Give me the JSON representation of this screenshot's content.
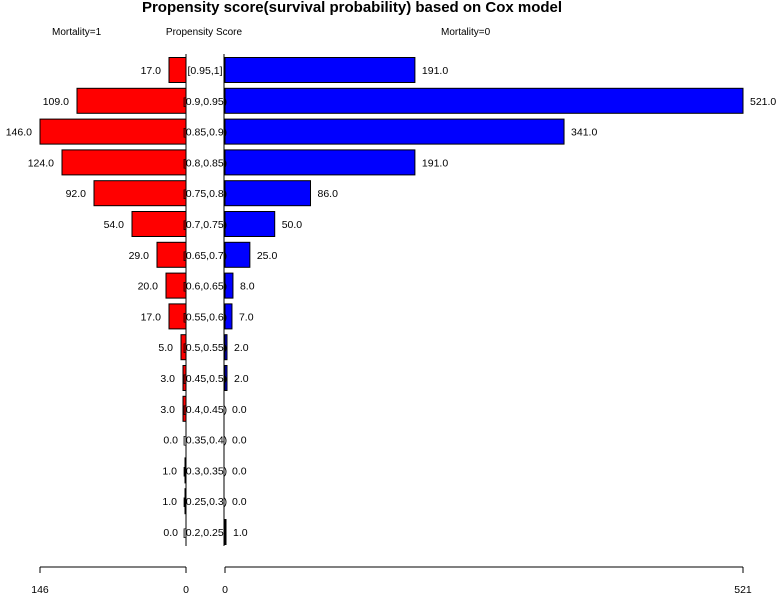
{
  "chart_data": {
    "type": "bar",
    "title": "Propensity score(survival probability) based on Cox model",
    "left_header": "Mortality=1",
    "center_header": "Propensity Score",
    "right_header": "Mortality=0",
    "colors": {
      "left": "#ff0000",
      "right": "#0000ff",
      "stroke": "#000000"
    },
    "categories": [
      "[0.95,1]",
      "[0.9,0.95)",
      "[0.85,0.9)",
      "[0.8,0.85)",
      "[0.75,0.8)",
      "[0.7,0.75)",
      "[0.65,0.7)",
      "[0.6,0.65)",
      "[0.55,0.6)",
      "[0.5,0.55)",
      "[0.45,0.5)",
      "[0.4,0.45)",
      "[0.35,0.4)",
      "[0.3,0.35)",
      "[0.25,0.3)",
      "[0.2,0.25)"
    ],
    "series": [
      {
        "name": "Mortality=1",
        "side": "left",
        "values": [
          17,
          109,
          146,
          124,
          92,
          54,
          29,
          20,
          17,
          5,
          3,
          3,
          0,
          1,
          1,
          0
        ],
        "labels": [
          "17.0",
          "109.0",
          "146.0",
          "124.0",
          "92.0",
          "54.0",
          "29.0",
          "20.0",
          "17.0",
          "5.0",
          "3.0",
          "3.0",
          "0.0",
          "1.0",
          "1.0",
          "0.0"
        ]
      },
      {
        "name": "Mortality=0",
        "side": "right",
        "values": [
          191,
          521,
          341,
          191,
          86,
          50,
          25,
          8,
          7,
          2,
          2,
          0,
          0,
          0,
          0,
          1
        ],
        "labels": [
          "191.0",
          "521.0",
          "341.0",
          "191.0",
          "86.0",
          "50.0",
          "25.0",
          "8.0",
          "7.0",
          "2.0",
          "2.0",
          "0.0",
          "0.0",
          "0.0",
          "0.0",
          "1.0"
        ]
      }
    ],
    "left_axis": {
      "range": [
        146,
        0
      ],
      "tick_labels": [
        "146",
        "0"
      ]
    },
    "right_axis": {
      "range": [
        0,
        521
      ],
      "tick_labels": [
        "0",
        "521"
      ]
    }
  }
}
